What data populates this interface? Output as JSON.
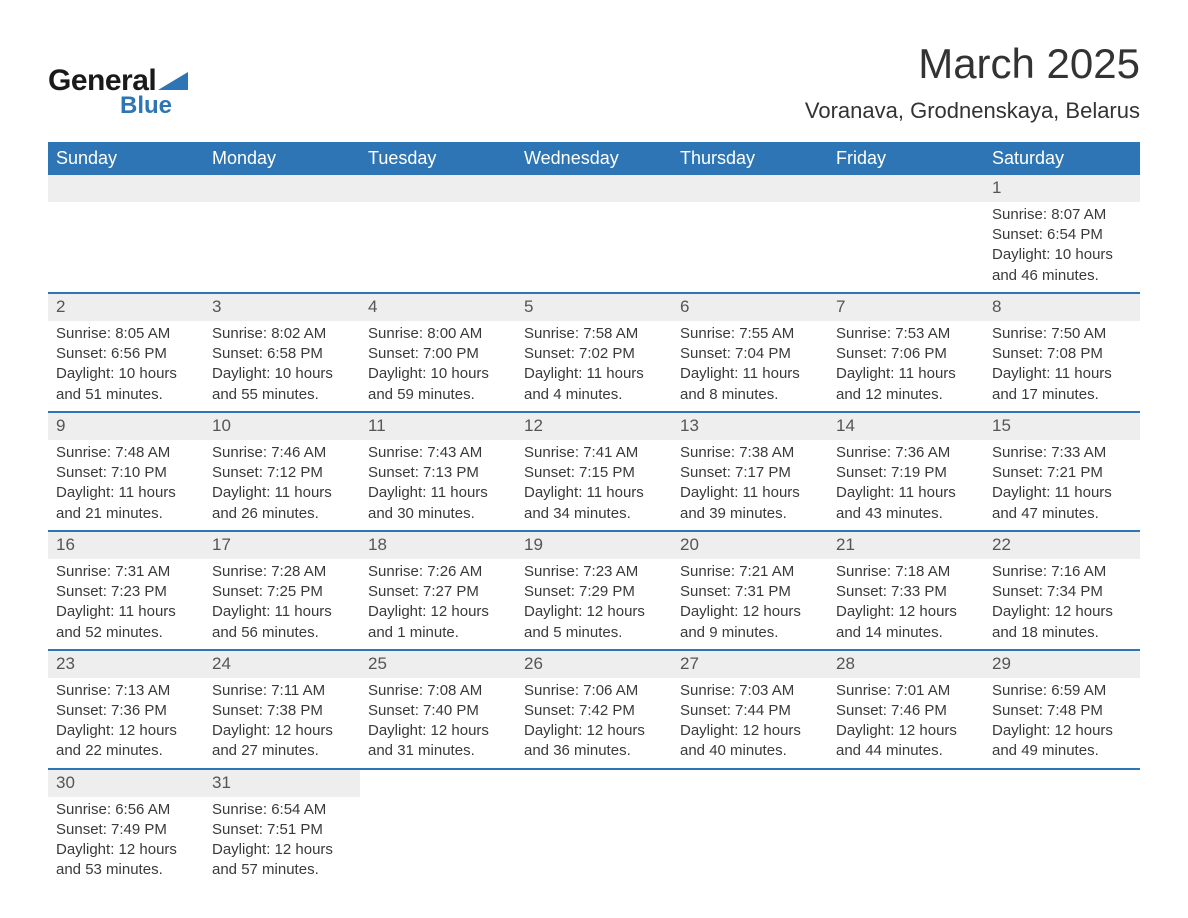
{
  "logo": {
    "word1": "General",
    "word2": "Blue",
    "text_color": "#1a1a1a",
    "accent_color": "#2e75b6"
  },
  "header": {
    "title": "March 2025",
    "location": "Voranava, Grodnenskaya, Belarus"
  },
  "style": {
    "header_bg": "#2e75b6",
    "header_fg": "#ffffff",
    "daynum_bg": "#eeeeee",
    "row_border": "#2e75b6",
    "body_fg": "#3a3a3a",
    "page_bg": "#ffffff",
    "header_fontsize": 18,
    "title_fontsize": 42,
    "location_fontsize": 22,
    "cell_fontsize": 15
  },
  "weekdays": [
    "Sunday",
    "Monday",
    "Tuesday",
    "Wednesday",
    "Thursday",
    "Friday",
    "Saturday"
  ],
  "lead_blanks": 6,
  "days": [
    {
      "n": "1",
      "sr": "Sunrise: 8:07 AM",
      "ss": "Sunset: 6:54 PM",
      "dl": "Daylight: 10 hours and 46 minutes."
    },
    {
      "n": "2",
      "sr": "Sunrise: 8:05 AM",
      "ss": "Sunset: 6:56 PM",
      "dl": "Daylight: 10 hours and 51 minutes."
    },
    {
      "n": "3",
      "sr": "Sunrise: 8:02 AM",
      "ss": "Sunset: 6:58 PM",
      "dl": "Daylight: 10 hours and 55 minutes."
    },
    {
      "n": "4",
      "sr": "Sunrise: 8:00 AM",
      "ss": "Sunset: 7:00 PM",
      "dl": "Daylight: 10 hours and 59 minutes."
    },
    {
      "n": "5",
      "sr": "Sunrise: 7:58 AM",
      "ss": "Sunset: 7:02 PM",
      "dl": "Daylight: 11 hours and 4 minutes."
    },
    {
      "n": "6",
      "sr": "Sunrise: 7:55 AM",
      "ss": "Sunset: 7:04 PM",
      "dl": "Daylight: 11 hours and 8 minutes."
    },
    {
      "n": "7",
      "sr": "Sunrise: 7:53 AM",
      "ss": "Sunset: 7:06 PM",
      "dl": "Daylight: 11 hours and 12 minutes."
    },
    {
      "n": "8",
      "sr": "Sunrise: 7:50 AM",
      "ss": "Sunset: 7:08 PM",
      "dl": "Daylight: 11 hours and 17 minutes."
    },
    {
      "n": "9",
      "sr": "Sunrise: 7:48 AM",
      "ss": "Sunset: 7:10 PM",
      "dl": "Daylight: 11 hours and 21 minutes."
    },
    {
      "n": "10",
      "sr": "Sunrise: 7:46 AM",
      "ss": "Sunset: 7:12 PM",
      "dl": "Daylight: 11 hours and 26 minutes."
    },
    {
      "n": "11",
      "sr": "Sunrise: 7:43 AM",
      "ss": "Sunset: 7:13 PM",
      "dl": "Daylight: 11 hours and 30 minutes."
    },
    {
      "n": "12",
      "sr": "Sunrise: 7:41 AM",
      "ss": "Sunset: 7:15 PM",
      "dl": "Daylight: 11 hours and 34 minutes."
    },
    {
      "n": "13",
      "sr": "Sunrise: 7:38 AM",
      "ss": "Sunset: 7:17 PM",
      "dl": "Daylight: 11 hours and 39 minutes."
    },
    {
      "n": "14",
      "sr": "Sunrise: 7:36 AM",
      "ss": "Sunset: 7:19 PM",
      "dl": "Daylight: 11 hours and 43 minutes."
    },
    {
      "n": "15",
      "sr": "Sunrise: 7:33 AM",
      "ss": "Sunset: 7:21 PM",
      "dl": "Daylight: 11 hours and 47 minutes."
    },
    {
      "n": "16",
      "sr": "Sunrise: 7:31 AM",
      "ss": "Sunset: 7:23 PM",
      "dl": "Daylight: 11 hours and 52 minutes."
    },
    {
      "n": "17",
      "sr": "Sunrise: 7:28 AM",
      "ss": "Sunset: 7:25 PM",
      "dl": "Daylight: 11 hours and 56 minutes."
    },
    {
      "n": "18",
      "sr": "Sunrise: 7:26 AM",
      "ss": "Sunset: 7:27 PM",
      "dl": "Daylight: 12 hours and 1 minute."
    },
    {
      "n": "19",
      "sr": "Sunrise: 7:23 AM",
      "ss": "Sunset: 7:29 PM",
      "dl": "Daylight: 12 hours and 5 minutes."
    },
    {
      "n": "20",
      "sr": "Sunrise: 7:21 AM",
      "ss": "Sunset: 7:31 PM",
      "dl": "Daylight: 12 hours and 9 minutes."
    },
    {
      "n": "21",
      "sr": "Sunrise: 7:18 AM",
      "ss": "Sunset: 7:33 PM",
      "dl": "Daylight: 12 hours and 14 minutes."
    },
    {
      "n": "22",
      "sr": "Sunrise: 7:16 AM",
      "ss": "Sunset: 7:34 PM",
      "dl": "Daylight: 12 hours and 18 minutes."
    },
    {
      "n": "23",
      "sr": "Sunrise: 7:13 AM",
      "ss": "Sunset: 7:36 PM",
      "dl": "Daylight: 12 hours and 22 minutes."
    },
    {
      "n": "24",
      "sr": "Sunrise: 7:11 AM",
      "ss": "Sunset: 7:38 PM",
      "dl": "Daylight: 12 hours and 27 minutes."
    },
    {
      "n": "25",
      "sr": "Sunrise: 7:08 AM",
      "ss": "Sunset: 7:40 PM",
      "dl": "Daylight: 12 hours and 31 minutes."
    },
    {
      "n": "26",
      "sr": "Sunrise: 7:06 AM",
      "ss": "Sunset: 7:42 PM",
      "dl": "Daylight: 12 hours and 36 minutes."
    },
    {
      "n": "27",
      "sr": "Sunrise: 7:03 AM",
      "ss": "Sunset: 7:44 PM",
      "dl": "Daylight: 12 hours and 40 minutes."
    },
    {
      "n": "28",
      "sr": "Sunrise: 7:01 AM",
      "ss": "Sunset: 7:46 PM",
      "dl": "Daylight: 12 hours and 44 minutes."
    },
    {
      "n": "29",
      "sr": "Sunrise: 6:59 AM",
      "ss": "Sunset: 7:48 PM",
      "dl": "Daylight: 12 hours and 49 minutes."
    },
    {
      "n": "30",
      "sr": "Sunrise: 6:56 AM",
      "ss": "Sunset: 7:49 PM",
      "dl": "Daylight: 12 hours and 53 minutes."
    },
    {
      "n": "31",
      "sr": "Sunrise: 6:54 AM",
      "ss": "Sunset: 7:51 PM",
      "dl": "Daylight: 12 hours and 57 minutes."
    }
  ]
}
